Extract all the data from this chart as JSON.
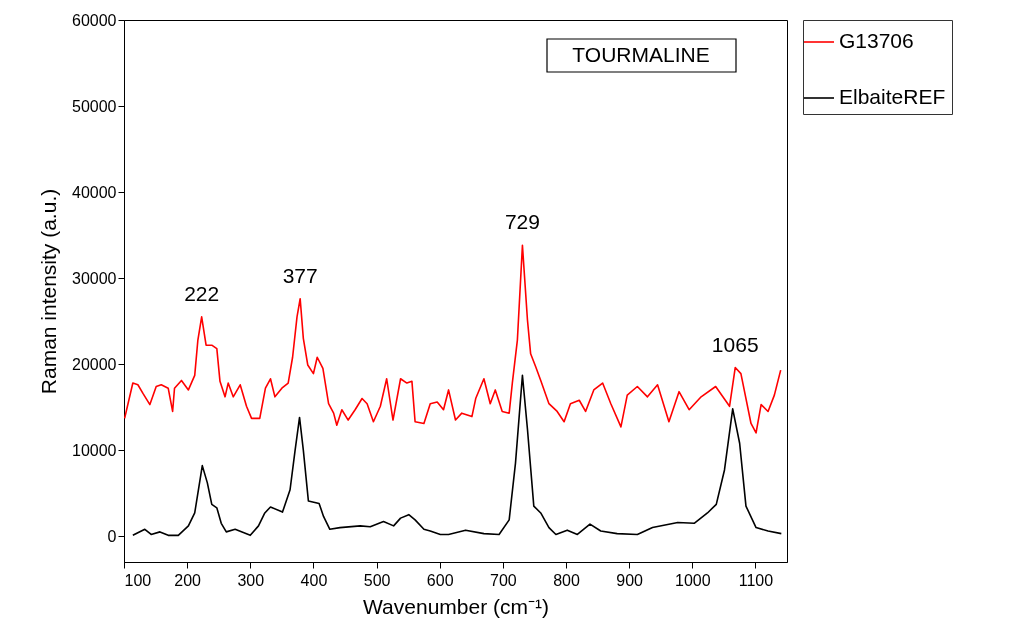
{
  "chart_data": {
    "type": "line",
    "xlabel": "Wavenumber (cm⁻¹)",
    "ylabel": "Raman intensity (a.u.)",
    "xlim": [
      100,
      1150
    ],
    "ylim": [
      -3000,
      60000
    ],
    "xticks": [
      100,
      200,
      300,
      400,
      500,
      600,
      700,
      800,
      900,
      1000,
      1100
    ],
    "yticks": [
      0,
      10000,
      20000,
      30000,
      40000,
      50000,
      60000
    ],
    "legend": "right",
    "line_style": "solid",
    "annotations": [
      "TOURMALINE",
      {
        "text": "222",
        "x": 223,
        "y": 25500
      },
      {
        "text": "377",
        "x": 379,
        "y": 27600
      },
      {
        "text": "729",
        "x": 731,
        "y": 33800
      },
      {
        "text": "1065",
        "x": 1068,
        "y": 19600
      }
    ],
    "series": [
      {
        "name": "G13706",
        "color": "#ff0000",
        "x": [
          101,
          114,
          122,
          130,
          141,
          151,
          159,
          170,
          177,
          180,
          191,
          202,
          212,
          217,
          223,
          230,
          239,
          247,
          252,
          260,
          265,
          273,
          284,
          294,
          302,
          315,
          324,
          332,
          339,
          350,
          360,
          367,
          374,
          379,
          384,
          391,
          400,
          406,
          415,
          424,
          432,
          437,
          445,
          455,
          466,
          477,
          485,
          495,
          506,
          516,
          526,
          538,
          548,
          556,
          561,
          575,
          585,
          596,
          606,
          614,
          625,
          635,
          651,
          657,
          670,
          680,
          688,
          699,
          710,
          715,
          723,
          731,
          739,
          744,
          752,
          760,
          773,
          786,
          797,
          807,
          821,
          831,
          844,
          858,
          871,
          887,
          897,
          913,
          929,
          945,
          963,
          979,
          995,
          1014,
          1037,
          1059,
          1068,
          1077,
          1093,
          1101,
          1109,
          1120,
          1130,
          1140
        ],
        "values": [
          13700,
          17800,
          17600,
          16600,
          15300,
          17400,
          17600,
          17200,
          14500,
          17200,
          18100,
          17000,
          18700,
          22800,
          25500,
          22200,
          22200,
          21800,
          18000,
          16200,
          17800,
          16200,
          17600,
          15100,
          13700,
          13700,
          17200,
          18300,
          16200,
          17200,
          17800,
          20800,
          25500,
          27600,
          23000,
          19900,
          18900,
          20800,
          19500,
          15400,
          14300,
          12900,
          14700,
          13500,
          14700,
          16000,
          15400,
          13300,
          15100,
          18300,
          13500,
          18300,
          17800,
          18000,
          13300,
          13100,
          15400,
          15600,
          14700,
          17000,
          13500,
          14300,
          13900,
          16000,
          18300,
          15400,
          17000,
          14500,
          14300,
          17800,
          22800,
          33800,
          25100,
          21200,
          19700,
          18100,
          15400,
          14500,
          13300,
          15400,
          15800,
          14500,
          17000,
          17800,
          15400,
          12700,
          16400,
          17400,
          16200,
          17600,
          13300,
          16800,
          14700,
          16200,
          17400,
          15100,
          19600,
          18900,
          13100,
          12000,
          15300,
          14500,
          16400,
          19300
        ]
      },
      {
        "name": "ElbaiteREF",
        "color": "#000000",
        "x": [
          114,
          133,
          143,
          157,
          170,
          186,
          202,
          212,
          224,
          232,
          239,
          247,
          254,
          262,
          276,
          300,
          313,
          323,
          332,
          351,
          363,
          371,
          378,
          384,
          392,
          409,
          416,
          426,
          442,
          474,
          490,
          511,
          527,
          538,
          551,
          561,
          575,
          585,
          601,
          614,
          641,
          670,
          694,
          710,
          720,
          731,
          739,
          749,
          760,
          773,
          784,
          802,
          818,
          838,
          855,
          881,
          913,
          937,
          977,
          1003,
          1024,
          1038,
          1051,
          1064,
          1075,
          1085,
          1101,
          1120,
          1141
        ],
        "values": [
          100,
          800,
          200,
          500,
          100,
          100,
          1200,
          2700,
          8200,
          6200,
          3700,
          3300,
          1500,
          500,
          800,
          100,
          1200,
          2700,
          3400,
          2800,
          5400,
          10000,
          13800,
          10000,
          4100,
          3800,
          2300,
          800,
          1000,
          1200,
          1100,
          1700,
          1200,
          2100,
          2500,
          1900,
          800,
          600,
          200,
          200,
          700,
          300,
          200,
          1900,
          8500,
          18700,
          12400,
          3500,
          2700,
          1000,
          200,
          700,
          200,
          1400,
          600,
          300,
          200,
          1000,
          1600,
          1500,
          2700,
          3700,
          7700,
          14800,
          10800,
          3500,
          1000,
          600,
          300
        ]
      }
    ]
  }
}
